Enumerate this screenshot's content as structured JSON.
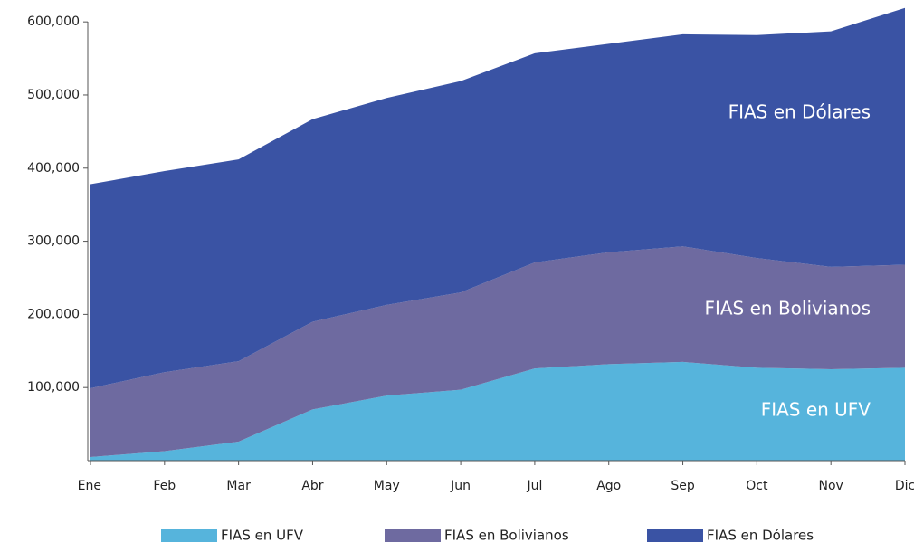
{
  "chart_data": {
    "type": "stacked_area",
    "categories": [
      "Ene",
      "Feb",
      "Mar",
      "Abr",
      "May",
      "Jun",
      "Jul",
      "Ago",
      "Sep",
      "Oct",
      "Nov",
      "Dic"
    ],
    "series": [
      {
        "name": "FIAS en UFV",
        "color": "#56b4dc",
        "values": [
          5000,
          13000,
          26000,
          70000,
          89000,
          97000,
          126000,
          132000,
          135000,
          127000,
          125000,
          127000
        ]
      },
      {
        "name": "FIAS en Bolivianos",
        "color": "#6e6aa0",
        "values": [
          94000,
          108000,
          110000,
          120000,
          124000,
          133000,
          145000,
          153000,
          158000,
          150000,
          140000,
          141000
        ]
      },
      {
        "name": "FIAS en Dólares",
        "color": "#3a53a4",
        "values": [
          279000,
          275000,
          276000,
          277000,
          283000,
          289000,
          286000,
          285000,
          290000,
          305000,
          322000,
          351000
        ]
      }
    ],
    "annotations": [
      "FIAS en Dólares",
      "FIAS en Bolivianos",
      "FIAS en UFV"
    ],
    "ylim": [
      0,
      620000
    ],
    "yticks": [
      {
        "value": 100000,
        "label": "100,000"
      },
      {
        "value": 200000,
        "label": "200,000"
      },
      {
        "value": 300000,
        "label": "300,000"
      },
      {
        "value": 400000,
        "label": "400,000"
      },
      {
        "value": 500000,
        "label": "500,000"
      },
      {
        "value": 600000,
        "label": "600,000"
      }
    ],
    "grid": false,
    "legend": "bottom"
  }
}
